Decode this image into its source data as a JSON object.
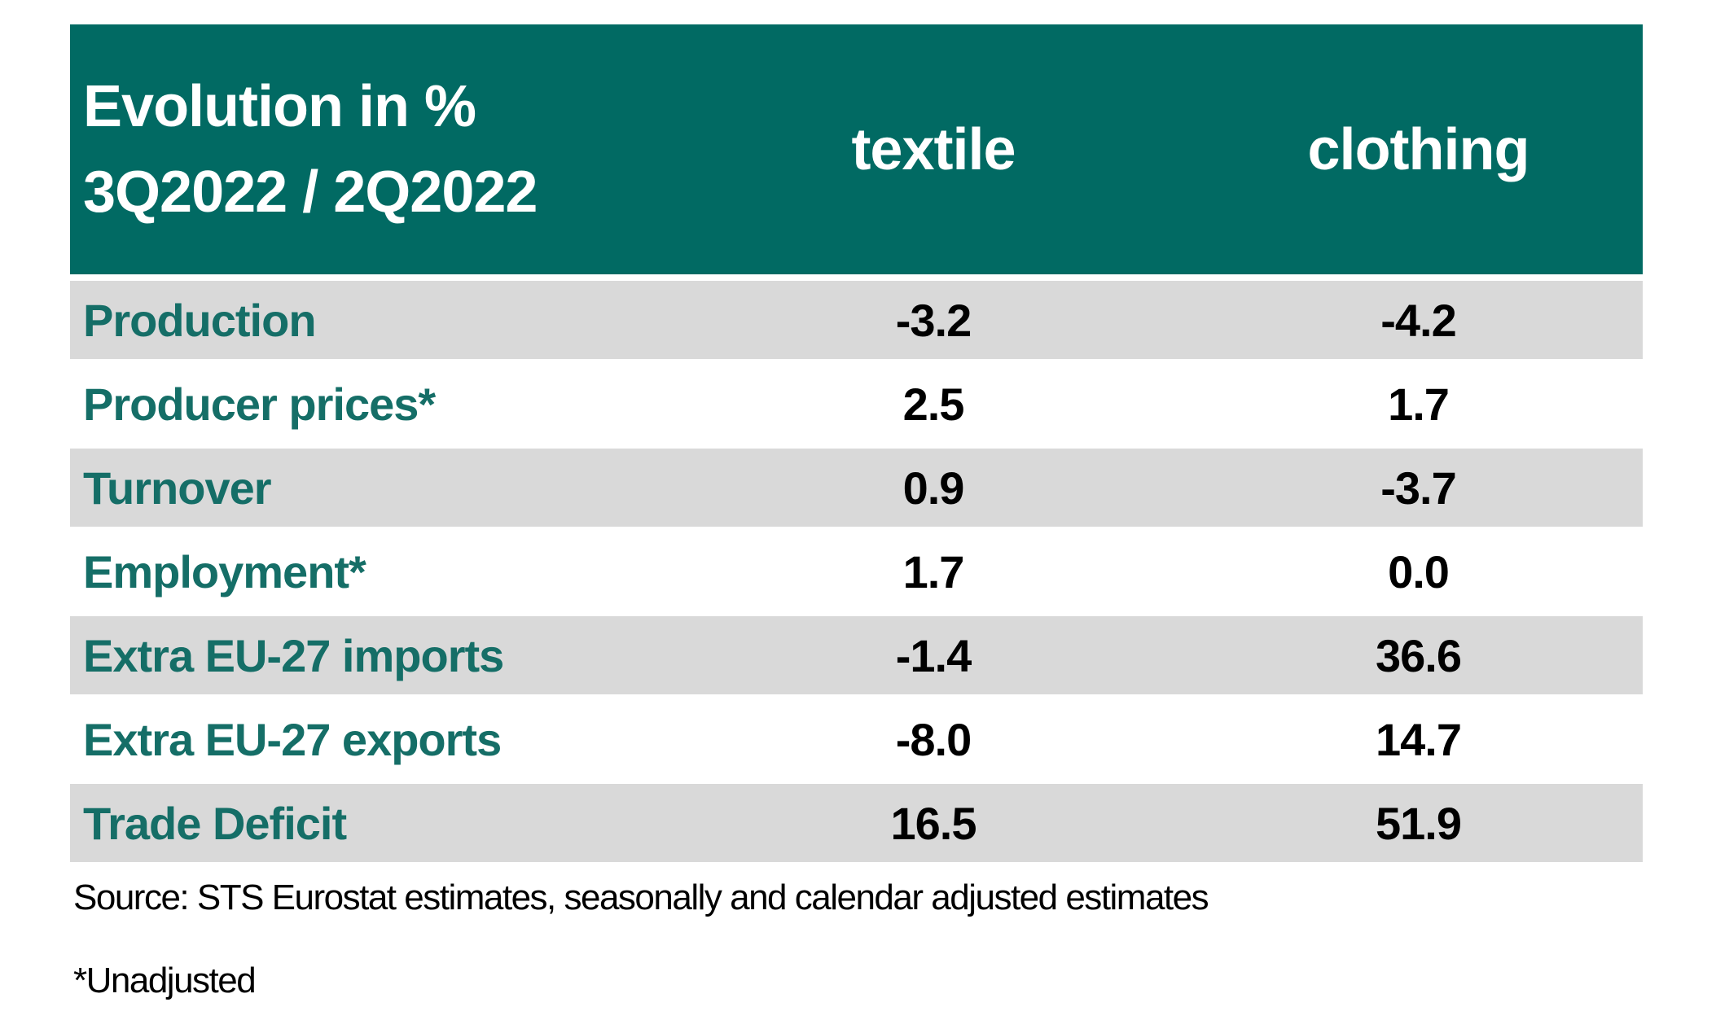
{
  "header": {
    "title_line1": "Evolution in %",
    "title_line2": "3Q2022 / 2Q2022",
    "columns": [
      "textile",
      "clothing"
    ]
  },
  "rows": [
    {
      "label": "Production",
      "textile": "-3.2",
      "clothing": "-4.2"
    },
    {
      "label": "Producer prices*",
      "textile": "2.5",
      "clothing": "1.7"
    },
    {
      "label": "Turnover",
      "textile": "0.9",
      "clothing": "-3.7"
    },
    {
      "label": "Employment*",
      "textile": "1.7",
      "clothing": "0.0"
    },
    {
      "label": "Extra EU-27 imports",
      "textile": "-1.4",
      "clothing": "36.6"
    },
    {
      "label": "Extra EU-27 exports",
      "textile": "-8.0",
      "clothing": "14.7"
    },
    {
      "label": "Trade Deficit",
      "textile": "16.5",
      "clothing": "51.9"
    }
  ],
  "footer": {
    "source": "Source: STS Eurostat estimates, seasonally and calendar adjusted estimates",
    "note": "*Unadjusted"
  },
  "colors": {
    "header_bg": "#016A63",
    "header_text": "#FFFFFF",
    "label_color": "#156E67",
    "row_gray": "#D9D9D9",
    "value_color": "#000000"
  },
  "chart_data": {
    "type": "table",
    "title": "Evolution in % 3Q2022 / 2Q2022",
    "columns": [
      "textile",
      "clothing"
    ],
    "categories": [
      "Production",
      "Producer prices*",
      "Turnover",
      "Employment*",
      "Extra EU-27 imports",
      "Extra EU-27 exports",
      "Trade Deficit"
    ],
    "series": [
      {
        "name": "textile",
        "values": [
          -3.2,
          2.5,
          0.9,
          1.7,
          -1.4,
          -8.0,
          16.5
        ]
      },
      {
        "name": "clothing",
        "values": [
          -4.2,
          1.7,
          -3.7,
          0.0,
          36.6,
          14.7,
          51.9
        ]
      }
    ],
    "unit": "%",
    "source": "Source: STS Eurostat estimates, seasonally and calendar adjusted estimates",
    "footnote": "*Unadjusted"
  }
}
